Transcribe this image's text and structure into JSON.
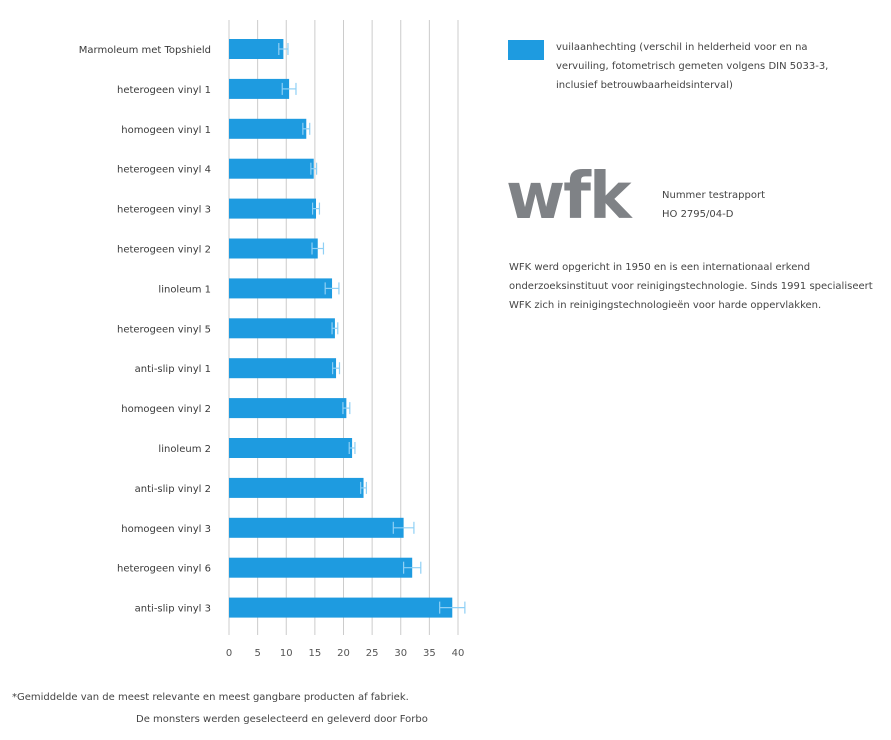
{
  "chart_data": {
    "type": "bar",
    "orientation": "horizontal",
    "categories": [
      "Marmoleum met Topshield",
      "heterogeen vinyl 1",
      "homogeen vinyl 1",
      "heterogeen vinyl 4",
      "heterogeen vinyl 3",
      "heterogeen vinyl 2",
      "linoleum 1",
      "heterogeen vinyl 5",
      "anti-slip vinyl 1",
      "homogeen vinyl 2",
      "linoleum 2",
      "anti-slip vinyl 2",
      "homogeen vinyl 3",
      "heterogeen vinyl 6",
      "anti-slip vinyl 3"
    ],
    "series": [
      {
        "name": "vuilaanhechting (verschil in helderheid voor en na vervuiling, fotometrisch gemeten volgens DIN 5033-3, inclusief betrouwbaarheidsinterval)",
        "values": [
          9.5,
          10.5,
          13.5,
          14.8,
          15.2,
          15.5,
          18.0,
          18.5,
          18.7,
          20.5,
          21.5,
          23.5,
          30.5,
          32.0,
          39.0
        ],
        "errors": [
          0.8,
          1.2,
          0.6,
          0.5,
          0.6,
          1.0,
          1.2,
          0.5,
          0.6,
          0.6,
          0.5,
          0.5,
          1.8,
          1.5,
          2.2
        ],
        "color": "#1e9be0"
      }
    ],
    "xlim": [
      0,
      40
    ],
    "xticks": [
      "0",
      "5",
      "10",
      "15",
      "20",
      "25",
      "30",
      "35",
      "40"
    ],
    "grid": true,
    "legend_position": "top-right"
  },
  "logo_text": "wfk",
  "report": {
    "line1": "Nummer testrapport",
    "line2": "HO 2795/04-D"
  },
  "about": {
    "text": "WFK werd opgericht in 1950 en is een internationaal erkend onderzoeksinstituut voor reinigingstechnologie. Sinds 1991 specialiseert WFK zich in reinigingstechnologieën voor harde oppervlakken."
  },
  "footnote": {
    "line1": "*Gemiddelde van de meest relevante en meest gangbare producten af fabriek.",
    "line2": "De monsters werden geselecteerd en geleverd door Forbo"
  },
  "colors": {
    "bar": "#1e9be0",
    "errorbar": "#8fd0f5",
    "grid": "#cccccc",
    "logo": "#7f8286"
  }
}
